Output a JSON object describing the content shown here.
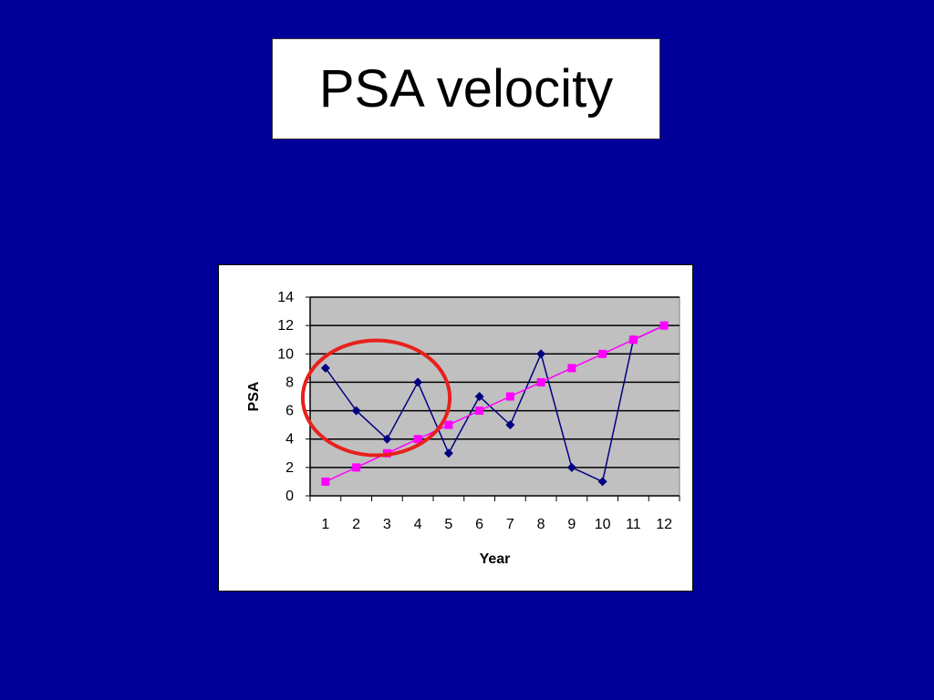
{
  "slide": {
    "title": "PSA velocity",
    "background_color": "#000099"
  },
  "chart_data": {
    "type": "line",
    "title": "",
    "xlabel": "Year",
    "ylabel": "PSA",
    "x": [
      "1",
      "2",
      "3",
      "4",
      "5",
      "6",
      "7",
      "8",
      "9",
      "10",
      "11",
      "12"
    ],
    "ylim": [
      0,
      14
    ],
    "yticks": [
      "0",
      "2",
      "4",
      "6",
      "8",
      "10",
      "12",
      "14"
    ],
    "grid": true,
    "plot_background": "#c0c0c0",
    "series": [
      {
        "marker": "diamond",
        "color": "#000080",
        "values": [
          9,
          6,
          4,
          8,
          3,
          7,
          5,
          10,
          2,
          1,
          11,
          12
        ]
      },
      {
        "marker": "square",
        "color": "#ff00ff",
        "values": [
          1,
          2,
          3,
          4,
          5,
          6,
          7,
          8,
          9,
          10,
          11,
          12
        ]
      }
    ],
    "annotation": {
      "shape": "circle",
      "color": "#e8201c",
      "around_x": [
        "1",
        "2",
        "3",
        "4"
      ]
    }
  }
}
